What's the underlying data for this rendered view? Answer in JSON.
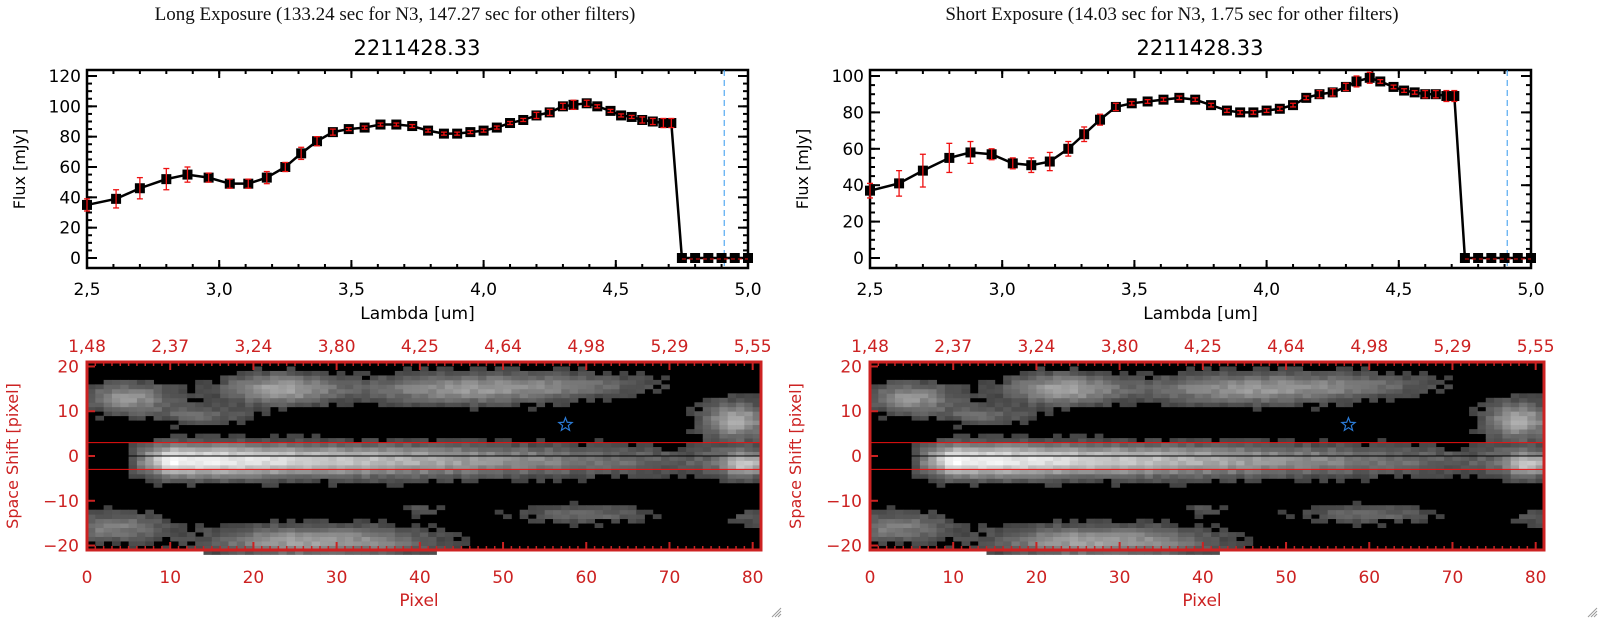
{
  "panels": [
    {
      "title": "Long Exposure (133.24 sec for N3, 147.27 sec for other filters)",
      "subtitle": "2211428.33"
    },
    {
      "title": "Short Exposure (14.03 sec for N3, 1.75 sec for other filters)",
      "subtitle": "2211428.33"
    }
  ],
  "colors": {
    "axis": "#000000",
    "errorbar": "#ee1111",
    "image_axis": "#cc2222",
    "cutoff_line": "#3399ee",
    "star": "#2b7bd6",
    "extraction_box": "#ee1111"
  },
  "chart_data": [
    {
      "type": "line",
      "name": "long-exposure-spectrum",
      "title": "2211428.33",
      "xlabel": "Lambda [um]",
      "ylabel": "Flux [mJy]",
      "xlim": [
        2.5,
        5.0
      ],
      "ylim": [
        0,
        120
      ],
      "xticks": [
        "2.5",
        "3.0",
        "3.5",
        "4.0",
        "4.5",
        "5.0"
      ],
      "yticks": [
        "0",
        "20",
        "40",
        "60",
        "80",
        "100",
        "120"
      ],
      "cutoff_x": 4.91,
      "x": [
        2.5,
        2.61,
        2.7,
        2.8,
        2.88,
        2.96,
        3.04,
        3.11,
        3.18,
        3.25,
        3.31,
        3.37,
        3.43,
        3.49,
        3.55,
        3.61,
        3.67,
        3.73,
        3.79,
        3.85,
        3.9,
        3.95,
        4.0,
        4.05,
        4.1,
        4.15,
        4.2,
        4.25,
        4.3,
        4.34,
        4.39,
        4.43,
        4.48,
        4.52,
        4.56,
        4.6,
        4.64,
        4.68,
        4.71,
        4.75,
        4.8,
        4.85,
        4.9,
        4.95,
        5.0
      ],
      "values": [
        35,
        39,
        46,
        52,
        55,
        53,
        49,
        49,
        53,
        60,
        69,
        77,
        83,
        85,
        86,
        88,
        88,
        87,
        84,
        82,
        82,
        83,
        84,
        86,
        89,
        91,
        94,
        96,
        100,
        101,
        102,
        100,
        97,
        94,
        93,
        91,
        90,
        89,
        89,
        0,
        0,
        0,
        0,
        0,
        0
      ],
      "errors": [
        4,
        6,
        7,
        7,
        5,
        3,
        3,
        3,
        4,
        3,
        4,
        3,
        2,
        1,
        1,
        1,
        1,
        1,
        1,
        1,
        1,
        1,
        1,
        1,
        1,
        1,
        2,
        2,
        2,
        3,
        2,
        1,
        1,
        1,
        1,
        2,
        2,
        3,
        3,
        0,
        0,
        0,
        0,
        0,
        0
      ]
    },
    {
      "type": "line",
      "name": "short-exposure-spectrum",
      "title": "2211428.33",
      "xlabel": "Lambda [um]",
      "ylabel": "Flux [mJy]",
      "xlim": [
        2.5,
        5.0
      ],
      "ylim": [
        0,
        100
      ],
      "xticks": [
        "2.5",
        "3.0",
        "3.5",
        "4.0",
        "4.5",
        "5.0"
      ],
      "yticks": [
        "0",
        "20",
        "40",
        "60",
        "80",
        "100"
      ],
      "cutoff_x": 4.91,
      "x": [
        2.5,
        2.61,
        2.7,
        2.8,
        2.88,
        2.96,
        3.04,
        3.11,
        3.18,
        3.25,
        3.31,
        3.37,
        3.43,
        3.49,
        3.55,
        3.61,
        3.67,
        3.73,
        3.79,
        3.85,
        3.9,
        3.95,
        4.0,
        4.05,
        4.1,
        4.15,
        4.2,
        4.25,
        4.3,
        4.34,
        4.39,
        4.43,
        4.48,
        4.52,
        4.56,
        4.6,
        4.64,
        4.68,
        4.71,
        4.75,
        4.8,
        4.85,
        4.9,
        4.95,
        5.0
      ],
      "values": [
        37,
        41,
        48,
        55,
        58,
        57,
        52,
        51,
        53,
        60,
        68,
        76,
        83,
        85,
        86,
        87,
        88,
        87,
        84,
        81,
        80,
        80,
        81,
        82,
        84,
        88,
        90,
        91,
        94,
        97,
        99,
        97,
        94,
        92,
        91,
        90,
        90,
        89,
        89,
        0,
        0,
        0,
        0,
        0,
        0
      ],
      "errors": [
        4,
        7,
        9,
        8,
        6,
        3,
        3,
        4,
        5,
        4,
        4,
        3,
        2,
        1,
        1,
        1,
        1,
        1,
        1,
        1,
        1,
        1,
        1,
        1,
        1,
        1,
        2,
        2,
        2,
        3,
        3,
        1,
        1,
        1,
        1,
        2,
        2,
        3,
        3,
        0,
        0,
        0,
        0,
        0,
        0
      ]
    },
    {
      "type": "heatmap",
      "name": "long-exposure-2d-spectrum",
      "xlabel": "Pixel",
      "ylabel": "Space Shift [pixel]",
      "xlim": [
        0,
        81
      ],
      "ylim": [
        -21,
        21
      ],
      "xticks": [
        "0",
        "10",
        "20",
        "30",
        "40",
        "50",
        "60",
        "70",
        "80"
      ],
      "yticks": [
        "-20",
        "-10",
        "0",
        "10",
        "20"
      ],
      "top_xticks": [
        "1.48",
        "2.37",
        "3.24",
        "3.80",
        "4.25",
        "4.64",
        "4.98",
        "5.29",
        "5.55"
      ],
      "extraction_aperture": [
        -3,
        3
      ],
      "star_marker": [
        57.5,
        7
      ]
    },
    {
      "type": "heatmap",
      "name": "short-exposure-2d-spectrum",
      "xlabel": "Pixel",
      "ylabel": "Space Shift [pixel]",
      "xlim": [
        0,
        81
      ],
      "ylim": [
        -21,
        21
      ],
      "xticks": [
        "0",
        "10",
        "20",
        "30",
        "40",
        "50",
        "60",
        "70",
        "80"
      ],
      "yticks": [
        "-20",
        "-10",
        "0",
        "10",
        "20"
      ],
      "top_xticks": [
        "1.48",
        "2.37",
        "3.24",
        "3.80",
        "4.25",
        "4.64",
        "4.98",
        "5.29",
        "5.55"
      ],
      "extraction_aperture": [
        -3,
        3
      ],
      "star_marker": [
        57.5,
        7
      ]
    }
  ]
}
